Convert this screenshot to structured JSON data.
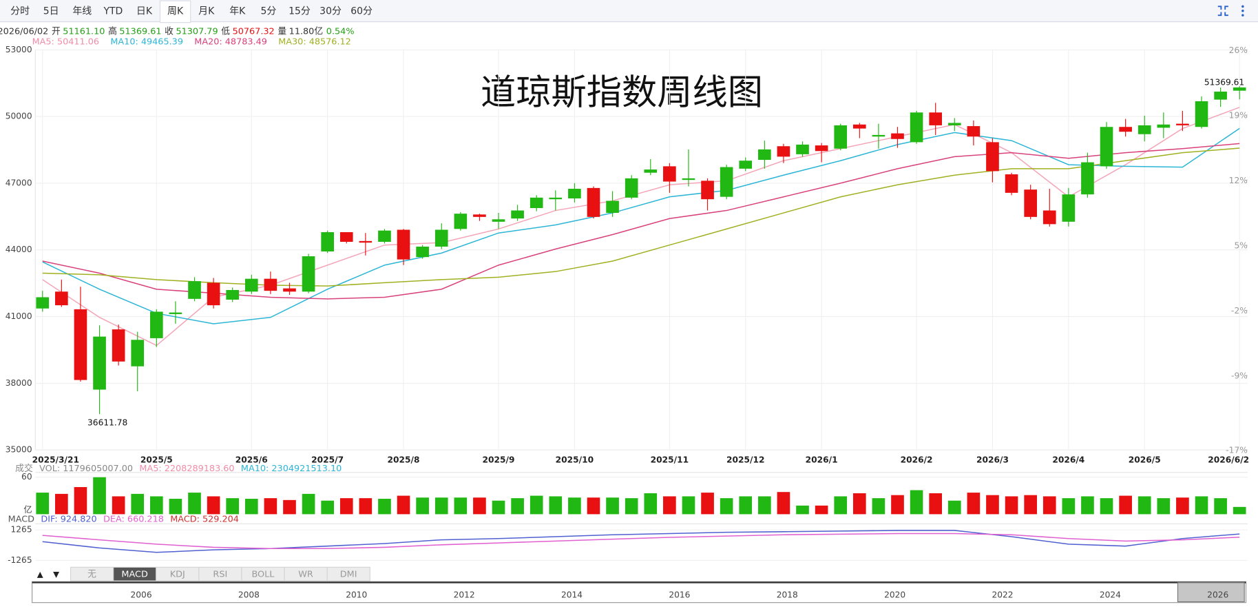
{
  "toolbar": {
    "tabs": [
      "分时",
      "5日",
      "年线",
      "YTD",
      "日K",
      "周K",
      "月K",
      "年K",
      "5分",
      "15分",
      "30分",
      "60分"
    ],
    "active_tab": 5
  },
  "quote": {
    "date": "2026/06/02",
    "items": [
      {
        "label": "开",
        "value": "51161.10",
        "color": "#22a014"
      },
      {
        "label": "高",
        "value": "51369.61",
        "color": "#22a014"
      },
      {
        "label": "收",
        "value": "51307.79",
        "color": "#22a014"
      },
      {
        "label": "低",
        "value": "50767.32",
        "color": "#e81010"
      },
      {
        "label": "量",
        "value": "11.80亿",
        "color": "#333333"
      }
    ],
    "change": "0.54%",
    "change_color": "#22a014"
  },
  "ma_legend": [
    {
      "text": "MA5: 50411.06",
      "color": "#f08ca8"
    },
    {
      "text": "MA10: 49465.39",
      "color": "#2bb5d6"
    },
    {
      "text": "MA20: 48783.49",
      "color": "#d9417a"
    },
    {
      "text": "MA30: 48576.12",
      "color": "#a0b020"
    }
  ],
  "chart_data": {
    "type": "candlestick",
    "title": "道琼斯指数周线图",
    "categories": [
      "2025/3/21",
      null,
      null,
      null,
      null,
      null,
      "2025/5",
      null,
      null,
      null,
      null,
      "2025/6",
      null,
      null,
      null,
      "2025/7",
      null,
      null,
      null,
      "2025/8",
      null,
      null,
      null,
      null,
      "2025/9",
      null,
      null,
      null,
      "2025/10",
      null,
      null,
      null,
      null,
      "2025/11",
      null,
      null,
      null,
      "2025/12",
      null,
      null,
      null,
      "2026/1",
      null,
      null,
      null,
      null,
      "2026/2",
      null,
      null,
      null,
      "2026/3",
      null,
      null,
      null,
      "2026/4",
      null,
      null,
      null,
      "2026/5",
      null,
      null,
      null,
      null,
      "2026/6/2"
    ],
    "open": [
      41363,
      42122,
      41327,
      37713,
      40423,
      38761,
      40026,
      41110,
      41796,
      42520,
      41760,
      42122,
      42700,
      42267,
      42122,
      43929,
      44796,
      44398,
      44362,
      44905,
      43676,
      44146,
      44941,
      45592,
      45266,
      45411,
      45881,
      46278,
      46314,
      46784,
      45664,
      46350,
      47471,
      47760,
      47146,
      47109,
      46387,
      47652,
      48049,
      48663,
      48302,
      48699,
      48555,
      49639,
      49097,
      49241,
      48844,
      50181,
      49603,
      49567,
      48844,
      47398,
      46712,
      45772,
      45266,
      46495,
      47760,
      49531,
      49205,
      49495,
      49675,
      49531,
      50759,
      51161.1
    ],
    "close": [
      41869,
      41508,
      38146,
      40098,
      38977,
      39953,
      41218,
      41182,
      42592,
      41508,
      42194,
      42700,
      42158,
      42122,
      43712,
      44796,
      44362,
      44326,
      44868,
      43568,
      44146,
      44905,
      45628,
      45483,
      45375,
      45772,
      46350,
      46350,
      46748,
      45483,
      46206,
      47218,
      47615,
      47073,
      47218,
      46278,
      47724,
      48013,
      48519,
      48193,
      48736,
      48446,
      49603,
      49458,
      49169,
      48988,
      50181,
      49603,
      49711,
      49097,
      47543,
      46567,
      45483,
      45157,
      46495,
      47940,
      49531,
      49314,
      49603,
      49639,
      49603,
      50687,
      51120,
      51307.79
    ],
    "high": [
      42158,
      42664,
      42339,
      40604,
      40640,
      40314,
      41327,
      41688,
      42772,
      42736,
      42303,
      42881,
      43025,
      42520,
      43820,
      44868,
      44796,
      44760,
      44941,
      44941,
      44218,
      45194,
      45700,
      45628,
      45664,
      46025,
      46459,
      46675,
      47001,
      46856,
      46639,
      47362,
      48085,
      47904,
      48519,
      47218,
      47832,
      48157,
      48916,
      48771,
      48880,
      48808,
      49675,
      49711,
      49675,
      49531,
      50253,
      50615,
      49928,
      49820,
      49025,
      47471,
      46929,
      46748,
      46784,
      48374,
      49748,
      49892,
      50037,
      50181,
      50253,
      50904,
      51300,
      51369.61
    ],
    "low": [
      41218,
      41435,
      38074,
      36611.78,
      38797,
      37640,
      39628,
      40676,
      41688,
      41363,
      41652,
      42014,
      42014,
      41977,
      42050,
      43857,
      44290,
      43748,
      44290,
      43314,
      43604,
      44037,
      44868,
      45302,
      44941,
      45302,
      45736,
      45772,
      46133,
      45411,
      45483,
      46278,
      47362,
      46567,
      46856,
      45772,
      46278,
      47543,
      47652,
      47904,
      48193,
      47940,
      48482,
      49025,
      48555,
      48591,
      48771,
      49169,
      49350,
      48699,
      47037,
      46459,
      45375,
      45049,
      45049,
      46350,
      47652,
      49097,
      48880,
      49025,
      49350,
      49458,
      50434,
      50767.32
    ],
    "up_color": "#22b814",
    "down_color": "#e81010",
    "ylim": [
      35000,
      53000
    ],
    "yticks": [
      53000,
      50000,
      47000,
      44000,
      41000,
      38000,
      35000
    ],
    "y2lim": [
      -17,
      26
    ],
    "y2ticks": [
      {
        "value": 26,
        "label": "26%"
      },
      {
        "value": 19,
        "label": "19%"
      },
      {
        "value": 12,
        "label": "12%"
      },
      {
        "value": 5,
        "label": "5%"
      },
      {
        "value": -2,
        "label": "-2%"
      },
      {
        "value": -9,
        "label": "-9%"
      },
      {
        "value": -17,
        "label": "-17%"
      }
    ],
    "grid": true,
    "max_label": "51369.61",
    "min_label": "36611.78",
    "ma_x": [
      0,
      3,
      6,
      9,
      12,
      15,
      18,
      21,
      24,
      27,
      30,
      33,
      36,
      39,
      42,
      45,
      48,
      51,
      54,
      57,
      60,
      63
    ],
    "ma_series": [
      {
        "color": "#f4a6b8",
        "values": [
          42664,
          40965,
          39700,
          41869,
          42411,
          43315,
          44218,
          44326,
          44941,
          45772,
          46206,
          46929,
          47109,
          48013,
          48555,
          49097,
          49639,
          48374,
          46387,
          47832,
          49458,
          50411.06
        ]
      },
      {
        "color": "#2bb5d6",
        "values": [
          43459,
          42230,
          41146,
          40676,
          40965,
          42230,
          43315,
          43857,
          44760,
          45122,
          45664,
          46387,
          46675,
          47362,
          48013,
          48736,
          49278,
          48916,
          47832,
          47760,
          47724,
          49465.39
        ]
      },
      {
        "color": "#d9417a",
        "values": [
          43495,
          42953,
          42230,
          42050,
          41869,
          41796,
          41869,
          42230,
          43315,
          44037,
          44688,
          45411,
          45772,
          46387,
          47001,
          47652,
          48193,
          48374,
          48121,
          48374,
          48555,
          48783.49
        ]
      },
      {
        "color": "#a0b020",
        "values": [
          42953,
          42881,
          42664,
          42520,
          42411,
          42375,
          42520,
          42664,
          42772,
          43025,
          43495,
          44218,
          44941,
          45664,
          46387,
          46929,
          47362,
          47652,
          47652,
          48013,
          48374,
          48576.12
        ]
      }
    ]
  },
  "volume": {
    "type": "bar",
    "header": [
      {
        "text": "成交",
        "color": "#888888"
      },
      {
        "text": "VOL: 1179605007.00",
        "color": "#888888"
      },
      {
        "text": "MA5: 2208289183.60",
        "color": "#f08ca8"
      },
      {
        "text": "MA10: 2304921513.10",
        "color": "#2bb5d6"
      }
    ],
    "ylim": [
      0,
      60
    ],
    "yticks": [
      60
    ],
    "unit": "亿",
    "values": [
      35,
      33,
      44,
      60,
      29,
      33,
      29,
      25,
      35,
      29,
      26,
      25,
      26,
      23,
      33,
      22,
      26,
      26,
      25,
      30,
      27,
      27,
      27,
      27,
      22,
      26,
      30,
      29,
      27,
      27,
      27,
      26,
      34,
      29,
      29,
      35,
      26,
      29,
      29,
      36,
      14,
      14,
      29,
      34,
      26,
      31,
      39,
      34,
      22,
      35,
      31,
      29,
      31,
      29,
      26,
      29,
      26,
      30,
      29,
      26,
      27,
      29,
      26,
      11.8
    ]
  },
  "macd": {
    "type": "line",
    "header": [
      {
        "text": "MACD",
        "color": "#555555"
      },
      {
        "text": "DIF: 924.820",
        "color": "#5060d0"
      },
      {
        "text": "DEA: 660.218",
        "color": "#e060d0"
      },
      {
        "text": "MACD: 529.204",
        "color": "#d03030"
      }
    ],
    "ylim": [
      -1500,
      1500
    ],
    "yticks": [
      1265,
      -1265
    ],
    "series": [
      {
        "color": "#5060d0",
        "values": [
          286,
          -234,
          -597,
          -390,
          -286,
          -78,
          130,
          442,
          545,
          701,
          857,
          960,
          1064,
          1116,
          1168,
          1220,
          1220,
          701,
          78,
          -78,
          545,
          924.82
        ]
      },
      {
        "color": "#e060d0",
        "values": [
          806,
          442,
          78,
          -182,
          -286,
          -286,
          -182,
          26,
          182,
          338,
          494,
          650,
          754,
          858,
          910,
          962,
          962,
          858,
          546,
          338,
          442,
          660.218
        ]
      }
    ]
  },
  "indicators": {
    "arrows": [
      "▲",
      "▼"
    ],
    "tabs": [
      "无",
      "MACD",
      "KDJ",
      "RSI",
      "BOLL",
      "WR",
      "DMI"
    ],
    "active_tab": 1
  },
  "navigator": {
    "years": [
      "2006",
      "2008",
      "2010",
      "2012",
      "2014",
      "2016",
      "2018",
      "2020",
      "2022",
      "2024",
      "2026"
    ]
  }
}
